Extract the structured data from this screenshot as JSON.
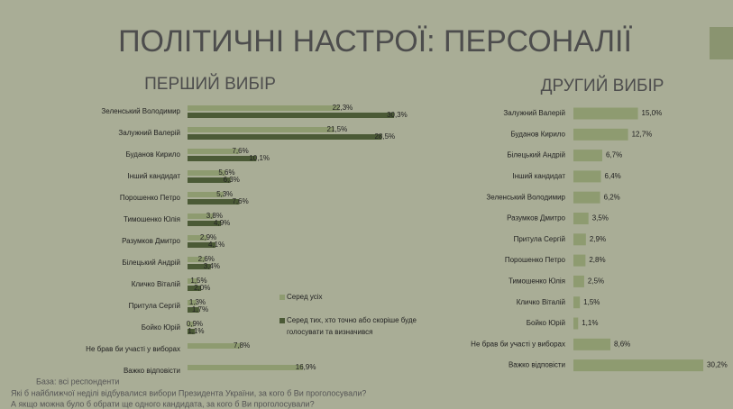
{
  "title": "ПОЛІТИЧНІ НАСТРОЇ: ПЕРСОНАЛІЇ",
  "chart_data": [
    {
      "type": "bar",
      "orientation": "horizontal",
      "title": "ПЕРШИЙ ВИБІР",
      "categories": [
        "Зеленський Володимир",
        "Залужний Валерій",
        "Буданов Кирило",
        "Інший кандидат",
        "Порошенко Петро",
        "Тимошенко Юлія",
        "Разумков Дмитро",
        "Білецький Андрій",
        "Кличко Віталій",
        "Притула Сергій",
        "Бойко Юрій",
        "Не брав би участі у виборах",
        "Важко відповісти"
      ],
      "series": [
        {
          "name": "Серед усіх",
          "color": "#8e9b70",
          "values": [
            22.3,
            21.5,
            7.6,
            5.6,
            5.3,
            3.8,
            2.9,
            2.6,
            1.5,
            1.3,
            0.9,
            7.8,
            16.9
          ],
          "value_labels": [
            "22,3%",
            "21,5%",
            "7,6%",
            "5,6%",
            "5,3%",
            "3,8%",
            "2,9%",
            "2,6%",
            "1,5%",
            "1,3%",
            "0,9%",
            "7,8%",
            "16,9%"
          ]
        },
        {
          "name": "Серед тих, хто точно або скоріше буде голосувати та визначився",
          "color": "#4b5a36",
          "values": [
            30.3,
            28.5,
            10.1,
            6.3,
            7.6,
            4.9,
            4.1,
            3.4,
            2.0,
            1.7,
            1.1,
            null,
            null
          ],
          "value_labels": [
            "30,3%",
            "28,5%",
            "10,1%",
            "6,3%",
            "7,6%",
            "4,9%",
            "4,1%",
            "3,4%",
            "2,0%",
            "1,7%",
            "1,1%",
            null,
            null
          ]
        }
      ]
    },
    {
      "type": "bar",
      "orientation": "horizontal",
      "title": "ДРУГИЙ ВИБІР",
      "color": "#8e9b70",
      "categories": [
        "Залужний Валерій",
        "Буданов Кирило",
        "Білецький Андрій",
        "Інший кандидат",
        "Зеленський Володимир",
        "Разумков Дмитро",
        "Притула Сергій",
        "Порошенко Петро",
        "Тимошенко Юлія",
        "Кличко Віталій",
        "Бойко Юрій",
        "Не брав би участі у виборах",
        "Важко відповісти"
      ],
      "values": [
        15.0,
        12.7,
        6.7,
        6.4,
        6.2,
        3.5,
        2.9,
        2.8,
        2.5,
        1.5,
        1.1,
        8.6,
        30.2
      ],
      "value_labels": [
        "15,0%",
        "12,7%",
        "6,7%",
        "6,4%",
        "6,2%",
        "3,5%",
        "2,9%",
        "2,8%",
        "2,5%",
        "1,5%",
        "1,1%",
        "8,6%",
        "30,2%"
      ]
    }
  ],
  "notes": [
    "База: всі респонденти",
    "Які б найближчої неділі відбувалися вибори Президента України, за кого б Ви проголосували?",
    "А якщо можна було б обрати ще одного кандидата, за кого б Ви проголосували?"
  ]
}
